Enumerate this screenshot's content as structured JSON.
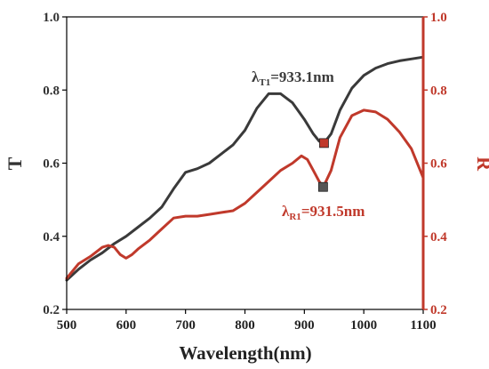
{
  "chart_data": {
    "type": "line",
    "xlabel": "Wavelength(nm)",
    "ylabel_left": "T",
    "ylabel_right": "R",
    "xlim": [
      500,
      1100
    ],
    "ylim_left": [
      0.2,
      1.0
    ],
    "ylim_right": [
      0.2,
      1.0
    ],
    "x_ticks": [
      "500",
      "600",
      "700",
      "800",
      "900",
      "1000",
      "1100"
    ],
    "y_ticks_left": [
      "0.2",
      "0.4",
      "0.6",
      "0.8",
      "1.0"
    ],
    "y_ticks_right": [
      "0.2",
      "0.4",
      "0.6",
      "0.8",
      "1.0"
    ],
    "grid": false,
    "colors": {
      "T": "#3a3a3a",
      "R": "#c0392b"
    },
    "series": [
      {
        "axis": "left",
        "x": [
          500,
          520,
          540,
          560,
          580,
          600,
          620,
          640,
          660,
          680,
          700,
          720,
          740,
          760,
          780,
          800,
          820,
          840,
          860,
          880,
          900,
          915,
          925,
          933,
          945,
          960,
          980,
          1000,
          1020,
          1040,
          1060,
          1080,
          1100
        ],
        "y": [
          0.28,
          0.31,
          0.335,
          0.355,
          0.38,
          0.4,
          0.425,
          0.45,
          0.48,
          0.53,
          0.575,
          0.585,
          0.6,
          0.625,
          0.65,
          0.69,
          0.75,
          0.79,
          0.79,
          0.765,
          0.72,
          0.68,
          0.66,
          0.655,
          0.68,
          0.745,
          0.805,
          0.84,
          0.86,
          0.872,
          0.88,
          0.885,
          0.89
        ]
      },
      {
        "axis": "right",
        "x": [
          500,
          520,
          540,
          560,
          570,
          580,
          590,
          600,
          610,
          620,
          640,
          660,
          680,
          700,
          720,
          740,
          760,
          780,
          800,
          820,
          840,
          860,
          880,
          895,
          905,
          915,
          925,
          932,
          945,
          960,
          980,
          1000,
          1020,
          1040,
          1060,
          1080,
          1100
        ],
        "y": [
          0.285,
          0.325,
          0.345,
          0.37,
          0.375,
          0.37,
          0.35,
          0.34,
          0.35,
          0.365,
          0.39,
          0.42,
          0.45,
          0.455,
          0.455,
          0.46,
          0.465,
          0.47,
          0.49,
          0.52,
          0.55,
          0.58,
          0.6,
          0.62,
          0.61,
          0.58,
          0.55,
          0.535,
          0.58,
          0.67,
          0.73,
          0.745,
          0.74,
          0.72,
          0.685,
          0.64,
          0.56
        ]
      }
    ],
    "markers": [
      {
        "x": 933.1,
        "y": 0.655,
        "color": "#c0392b"
      },
      {
        "x": 931.5,
        "y": 0.535,
        "color": "#555555"
      }
    ],
    "annotations": [
      {
        "main": "λ",
        "sub": "T1",
        "rest": "=933.1nm",
        "color": "#3a3a3a"
      },
      {
        "main": "λ",
        "sub": "R1",
        "rest": "=931.5nm",
        "color": "#c0392b"
      }
    ]
  }
}
